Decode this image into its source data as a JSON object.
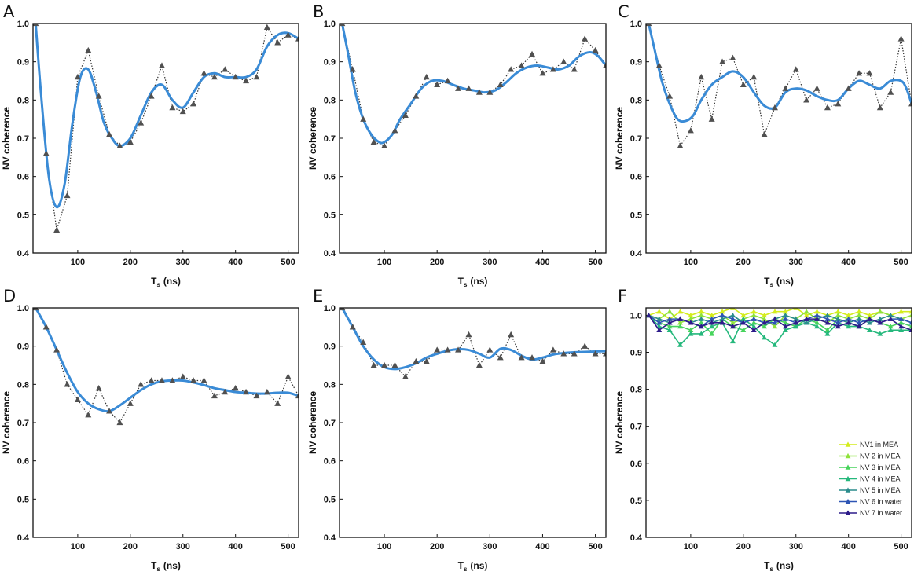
{
  "chart_data": [
    {
      "panel": "A",
      "type": "line",
      "xlabel": "T",
      "xlabel_sub": "s",
      "xlabel_unit": "(ns)",
      "ylabel": "NV coherence",
      "xlim": [
        15,
        520
      ],
      "ylim": [
        0.4,
        1.0
      ],
      "xticks": [
        100,
        200,
        300,
        400,
        500
      ],
      "yticks": [
        0.4,
        0.5,
        0.6,
        0.7,
        0.8,
        0.9,
        1.0
      ],
      "ytick_labels": [
        "0.4",
        "0.5",
        "0.6",
        "0.7",
        "0.8",
        "0.9",
        "1.0"
      ],
      "data_series": {
        "name": "data",
        "x": [
          20,
          40,
          60,
          80,
          100,
          120,
          140,
          160,
          180,
          200,
          220,
          240,
          260,
          280,
          300,
          320,
          340,
          360,
          380,
          400,
          420,
          440,
          460,
          480,
          500,
          520
        ],
        "values": [
          1.0,
          0.66,
          0.46,
          0.55,
          0.86,
          0.93,
          0.81,
          0.71,
          0.68,
          0.69,
          0.74,
          0.81,
          0.89,
          0.78,
          0.77,
          0.79,
          0.87,
          0.86,
          0.88,
          0.86,
          0.85,
          0.86,
          0.99,
          0.95,
          0.97,
          0.96
        ]
      },
      "fit_series": {
        "name": "fit",
        "x": [
          20,
          30,
          45,
          60,
          75,
          90,
          105,
          120,
          135,
          150,
          165,
          180,
          200,
          220,
          240,
          260,
          280,
          300,
          320,
          340,
          360,
          380,
          400,
          420,
          440,
          460,
          480,
          500,
          520
        ],
        "values": [
          1.0,
          0.82,
          0.6,
          0.52,
          0.58,
          0.74,
          0.86,
          0.88,
          0.82,
          0.74,
          0.7,
          0.68,
          0.7,
          0.76,
          0.82,
          0.84,
          0.8,
          0.78,
          0.82,
          0.86,
          0.87,
          0.86,
          0.86,
          0.86,
          0.88,
          0.94,
          0.97,
          0.975,
          0.96
        ]
      }
    },
    {
      "panel": "B",
      "type": "line",
      "xlabel": "T",
      "xlabel_sub": "s",
      "xlabel_unit": "(ns)",
      "ylabel": "NV coherence",
      "xlim": [
        15,
        520
      ],
      "ylim": [
        0.4,
        1.0
      ],
      "xticks": [
        100,
        200,
        300,
        400,
        500
      ],
      "yticks": [
        0.4,
        0.5,
        0.6,
        0.7,
        0.8,
        0.9,
        1.0
      ],
      "ytick_labels": [
        "0.4",
        "0.5",
        "0.6",
        "0.7",
        "0.8",
        "0.9",
        "1.0"
      ],
      "data_series": {
        "name": "data",
        "x": [
          20,
          40,
          60,
          80,
          100,
          120,
          140,
          160,
          180,
          200,
          220,
          240,
          260,
          280,
          300,
          320,
          340,
          360,
          380,
          400,
          420,
          440,
          460,
          480,
          500,
          520
        ],
        "values": [
          1.0,
          0.88,
          0.75,
          0.69,
          0.68,
          0.72,
          0.76,
          0.81,
          0.86,
          0.84,
          0.85,
          0.83,
          0.83,
          0.82,
          0.82,
          0.84,
          0.88,
          0.89,
          0.92,
          0.87,
          0.88,
          0.9,
          0.88,
          0.96,
          0.93,
          0.89
        ]
      },
      "fit_series": {
        "name": "fit",
        "x": [
          20,
          30,
          45,
          60,
          75,
          90,
          100,
          115,
          130,
          150,
          170,
          190,
          210,
          230,
          250,
          270,
          290,
          310,
          330,
          350,
          370,
          390,
          410,
          430,
          450,
          470,
          490,
          505,
          520
        ],
        "values": [
          1.0,
          0.93,
          0.82,
          0.75,
          0.71,
          0.69,
          0.69,
          0.71,
          0.75,
          0.79,
          0.83,
          0.85,
          0.85,
          0.84,
          0.83,
          0.825,
          0.82,
          0.825,
          0.845,
          0.87,
          0.885,
          0.89,
          0.885,
          0.88,
          0.89,
          0.915,
          0.925,
          0.915,
          0.89
        ]
      }
    },
    {
      "panel": "C",
      "type": "line",
      "xlabel": "T",
      "xlabel_sub": "s",
      "xlabel_unit": "(ns)",
      "ylabel": "NV coherence",
      "xlim": [
        15,
        520
      ],
      "ylim": [
        0.4,
        1.0
      ],
      "xticks": [
        100,
        200,
        300,
        400,
        500
      ],
      "yticks": [
        0.4,
        0.5,
        0.6,
        0.7,
        0.8,
        0.9,
        1.0
      ],
      "ytick_labels": [
        "0.4",
        "0.5",
        "0.6",
        "0.7",
        "0.8",
        "0.9",
        "1.0"
      ],
      "data_series": {
        "name": "data",
        "x": [
          20,
          40,
          60,
          80,
          100,
          120,
          140,
          160,
          180,
          200,
          220,
          240,
          260,
          280,
          300,
          320,
          340,
          360,
          380,
          400,
          420,
          440,
          460,
          480,
          500,
          520
        ],
        "values": [
          1.0,
          0.89,
          0.81,
          0.68,
          0.72,
          0.86,
          0.75,
          0.9,
          0.91,
          0.84,
          0.86,
          0.71,
          0.78,
          0.83,
          0.88,
          0.8,
          0.83,
          0.78,
          0.79,
          0.83,
          0.87,
          0.87,
          0.78,
          0.82,
          0.96,
          0.79
        ]
      },
      "fit_series": {
        "name": "fit",
        "x": [
          20,
          30,
          45,
          60,
          75,
          90,
          105,
          120,
          140,
          160,
          180,
          200,
          220,
          240,
          260,
          280,
          300,
          320,
          340,
          360,
          380,
          400,
          420,
          440,
          460,
          480,
          500,
          510,
          520
        ],
        "values": [
          1.0,
          0.94,
          0.85,
          0.79,
          0.75,
          0.745,
          0.76,
          0.8,
          0.84,
          0.86,
          0.875,
          0.86,
          0.82,
          0.785,
          0.78,
          0.82,
          0.83,
          0.825,
          0.81,
          0.8,
          0.8,
          0.83,
          0.85,
          0.84,
          0.83,
          0.85,
          0.85,
          0.83,
          0.79
        ]
      }
    },
    {
      "panel": "D",
      "type": "line",
      "xlabel": "T",
      "xlabel_sub": "s",
      "xlabel_unit": "(ns)",
      "ylabel": "NV coherence",
      "xlim": [
        15,
        520
      ],
      "ylim": [
        0.4,
        1.0
      ],
      "xticks": [
        100,
        200,
        300,
        400,
        500
      ],
      "yticks": [
        0.4,
        0.5,
        0.6,
        0.7,
        0.8,
        0.9,
        1.0
      ],
      "ytick_labels": [
        "0.4",
        "0.5",
        "0.6",
        "0.7",
        "0.8",
        "0.9",
        "1.0"
      ],
      "data_series": {
        "name": "data",
        "x": [
          20,
          40,
          60,
          80,
          100,
          120,
          140,
          160,
          180,
          200,
          220,
          240,
          260,
          280,
          300,
          320,
          340,
          360,
          380,
          400,
          420,
          440,
          460,
          480,
          500,
          520
        ],
        "values": [
          1.0,
          0.95,
          0.89,
          0.8,
          0.76,
          0.72,
          0.79,
          0.73,
          0.7,
          0.75,
          0.8,
          0.81,
          0.81,
          0.81,
          0.82,
          0.81,
          0.81,
          0.77,
          0.78,
          0.79,
          0.78,
          0.77,
          0.78,
          0.75,
          0.82,
          0.77
        ]
      },
      "fit_series": {
        "name": "fit",
        "x": [
          20,
          40,
          60,
          80,
          100,
          120,
          140,
          160,
          180,
          200,
          220,
          240,
          260,
          280,
          300,
          320,
          340,
          360,
          380,
          400,
          420,
          440,
          460,
          480,
          500,
          520
        ],
        "values": [
          1.0,
          0.95,
          0.89,
          0.83,
          0.78,
          0.75,
          0.735,
          0.73,
          0.745,
          0.765,
          0.785,
          0.8,
          0.808,
          0.81,
          0.81,
          0.805,
          0.798,
          0.79,
          0.785,
          0.78,
          0.778,
          0.776,
          0.776,
          0.778,
          0.778,
          0.77
        ]
      }
    },
    {
      "panel": "E",
      "type": "line",
      "xlabel": "T",
      "xlabel_sub": "s",
      "xlabel_unit": "(ns)",
      "ylabel": "NV coherence",
      "xlim": [
        15,
        520
      ],
      "ylim": [
        0.4,
        1.0
      ],
      "xticks": [
        100,
        200,
        300,
        400,
        500
      ],
      "yticks": [
        0.4,
        0.5,
        0.6,
        0.7,
        0.8,
        0.9,
        1.0
      ],
      "ytick_labels": [
        "0.4",
        "0.5",
        "0.6",
        "0.7",
        "0.8",
        "0.9",
        "1.0"
      ],
      "data_series": {
        "name": "data",
        "x": [
          20,
          40,
          60,
          80,
          100,
          120,
          140,
          160,
          180,
          200,
          220,
          240,
          260,
          280,
          300,
          320,
          340,
          360,
          380,
          400,
          420,
          440,
          460,
          480,
          500,
          520
        ],
        "values": [
          1.0,
          0.95,
          0.91,
          0.85,
          0.85,
          0.85,
          0.82,
          0.86,
          0.86,
          0.89,
          0.89,
          0.89,
          0.93,
          0.85,
          0.89,
          0.87,
          0.93,
          0.87,
          0.87,
          0.86,
          0.89,
          0.88,
          0.88,
          0.9,
          0.88,
          0.88
        ]
      },
      "fit_series": {
        "name": "fit",
        "x": [
          20,
          40,
          60,
          80,
          100,
          120,
          140,
          160,
          180,
          200,
          220,
          240,
          260,
          280,
          300,
          320,
          340,
          360,
          380,
          400,
          420,
          440,
          460,
          480,
          500,
          520
        ],
        "values": [
          1.0,
          0.95,
          0.9,
          0.865,
          0.845,
          0.84,
          0.845,
          0.855,
          0.87,
          0.88,
          0.888,
          0.892,
          0.89,
          0.88,
          0.87,
          0.893,
          0.89,
          0.875,
          0.865,
          0.87,
          0.878,
          0.882,
          0.884,
          0.885,
          0.886,
          0.887
        ]
      }
    },
    {
      "panel": "F",
      "type": "line",
      "xlabel": "T",
      "xlabel_sub": "s",
      "xlabel_unit": "(ns)",
      "ylabel": "NV coherence",
      "xlim": [
        15,
        520
      ],
      "ylim": [
        0.4,
        1.02
      ],
      "xticks": [
        100,
        200,
        300,
        400,
        500
      ],
      "yticks": [
        0.4,
        0.5,
        0.6,
        0.7,
        0.8,
        0.9,
        1.0
      ],
      "ytick_labels": [
        "0.4",
        "0.5",
        "0.6",
        "0.7",
        "0.8",
        "0.9",
        "1.0"
      ],
      "legend_position": "bottom-right",
      "x": [
        20,
        40,
        60,
        80,
        100,
        120,
        140,
        160,
        180,
        200,
        220,
        240,
        260,
        280,
        300,
        320,
        340,
        360,
        380,
        400,
        420,
        440,
        460,
        480,
        500,
        520
      ],
      "series": [
        {
          "name": "NV1 in MEA",
          "color": "#d4ec1c",
          "values": [
            1.0,
            1.01,
            0.99,
            1.01,
            1.0,
            1.01,
            1.0,
            1.01,
            1.02,
            1.0,
            1.01,
            1.0,
            1.01,
            1.01,
            1.02,
            1.0,
            1.01,
            1.0,
            1.01,
            1.0,
            1.01,
            1.0,
            1.01,
            1.0,
            1.01,
            1.01
          ]
        },
        {
          "name": "NV 2 in MEA",
          "color": "#8ee23a",
          "values": [
            1.0,
            0.99,
            1.01,
            0.98,
            0.99,
            1.0,
            0.99,
            1.0,
            0.98,
            0.99,
            1.0,
            0.99,
            0.97,
            1.0,
            0.99,
            1.01,
            0.99,
            0.98,
            1.0,
            0.99,
            1.0,
            0.99,
            1.01,
            1.0,
            0.99,
            1.0
          ]
        },
        {
          "name": "NV 3 in MEA",
          "color": "#47d45c",
          "values": [
            1.0,
            0.98,
            0.97,
            0.97,
            0.96,
            0.98,
            0.95,
            0.99,
            0.97,
            0.96,
            0.98,
            0.97,
            0.99,
            0.98,
            0.97,
            0.99,
            0.98,
            0.96,
            0.99,
            0.98,
            0.97,
            0.99,
            0.98,
            0.97,
            0.98,
            0.97
          ]
        },
        {
          "name": "NV 4 in MEA",
          "color": "#25b87c",
          "values": [
            1.0,
            0.97,
            0.96,
            0.92,
            0.95,
            0.95,
            0.97,
            0.98,
            0.93,
            0.99,
            0.97,
            0.94,
            0.92,
            0.96,
            0.97,
            0.98,
            0.97,
            0.95,
            0.98,
            0.97,
            0.97,
            0.96,
            0.95,
            0.96,
            0.96,
            0.96
          ]
        },
        {
          "name": "NV 5 in MEA",
          "color": "#2a8c8c",
          "values": [
            1.0,
            0.99,
            0.98,
            0.99,
            0.98,
            0.99,
            0.98,
            0.99,
            1.0,
            0.98,
            0.99,
            0.98,
            0.99,
            1.0,
            0.99,
            0.98,
            0.99,
            1.0,
            0.99,
            0.98,
            0.99,
            0.98,
            0.99,
            1.0,
            0.99,
            0.98
          ]
        },
        {
          "name": "NV 6 in water",
          "color": "#2e55b4",
          "values": [
            1.0,
            0.98,
            0.99,
            0.99,
            0.98,
            0.97,
            0.99,
            1.0,
            0.99,
            0.98,
            0.99,
            0.98,
            0.98,
            0.99,
            0.98,
            0.99,
            1.0,
            0.99,
            0.98,
            0.99,
            0.98,
            0.99,
            0.98,
            0.99,
            0.99,
            0.98
          ]
        },
        {
          "name": "NV 7 in water",
          "color": "#2d1b8a",
          "values": [
            1.0,
            0.96,
            0.98,
            0.99,
            0.98,
            0.97,
            0.98,
            0.98,
            0.97,
            0.98,
            0.96,
            0.98,
            0.99,
            0.97,
            0.98,
            0.99,
            0.99,
            0.98,
            0.97,
            0.98,
            0.97,
            0.99,
            0.98,
            0.99,
            0.97,
            0.96
          ]
        }
      ]
    }
  ],
  "style": {
    "data_marker_color": "#505050",
    "fit_line_color": "#3a8bd6",
    "axis_color": "#111111"
  }
}
